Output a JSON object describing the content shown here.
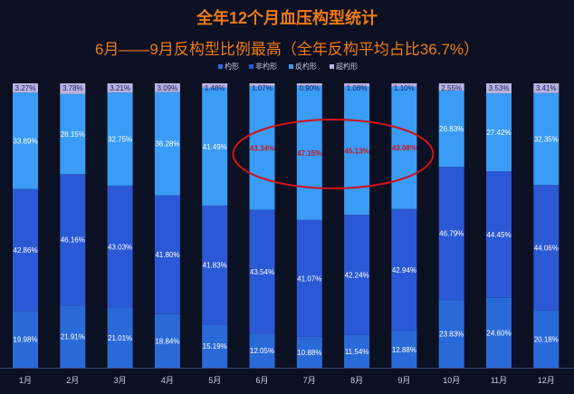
{
  "chart_data": {
    "type": "bar",
    "stacked": true,
    "normalized": true,
    "title": "全年12个月血压构型统计",
    "subtitle": "6月——9月反构型比例最高（全年反构平均占比36.7%）",
    "categories": [
      "1月",
      "2月",
      "3月",
      "4月",
      "5月",
      "6月",
      "7月",
      "8月",
      "9月",
      "10月",
      "11月",
      "12月"
    ],
    "series": [
      {
        "name": "杓形",
        "color": "#2a6ad8",
        "values": [
          19.98,
          21.91,
          21.01,
          18.84,
          15.19,
          12.05,
          10.88,
          11.54,
          12.88,
          23.83,
          24.6,
          20.18
        ],
        "labels": [
          "19.98%",
          "21.91%",
          "21.01%",
          "18.84%",
          "15.19%",
          "12.05%",
          "10.88%",
          "11.54%",
          "12.88%",
          "23.83%",
          "24.60%",
          "20.18%"
        ]
      },
      {
        "name": "非杓形",
        "color": "#2b58d4",
        "values": [
          42.86,
          46.16,
          43.03,
          41.8,
          41.83,
          43.54,
          41.07,
          42.24,
          42.94,
          46.79,
          44.45,
          44.06
        ],
        "labels": [
          "42.86%",
          "46.16%",
          "43.03%",
          "41.80%",
          "41.83%",
          "43.54%",
          "41.07%",
          "42.24%",
          "42.94%",
          "46.79%",
          "44.45%",
          "44.06%"
        ]
      },
      {
        "name": "反杓形",
        "color": "#3a9cf4",
        "values": [
          33.89,
          28.15,
          32.75,
          36.28,
          41.49,
          43.34,
          47.15,
          45.13,
          43.08,
          26.83,
          27.42,
          32.35
        ],
        "labels": [
          "33.89%",
          "28.15%",
          "32.75%",
          "36.28%",
          "41.49%",
          "43.34%",
          "47.15%",
          "45.13%",
          "43.08%",
          "26.83%",
          "27.42%",
          "32.35%"
        ]
      },
      {
        "name": "超杓形",
        "color": "#b9b2df",
        "values": [
          3.27,
          3.78,
          3.21,
          3.09,
          1.48,
          1.07,
          0.9,
          1.08,
          1.1,
          2.55,
          3.53,
          3.41
        ],
        "labels": [
          "3.27%",
          "3.78%",
          "3.21%",
          "3.09%",
          "1.48%",
          "1.07%",
          "0.90%",
          "1.08%",
          "1.10%",
          "2.55%",
          "3.53%",
          "3.41%"
        ]
      }
    ],
    "highlight": {
      "categories": [
        "6月",
        "7月",
        "8月",
        "9月"
      ],
      "series": "反杓形",
      "shape": "ellipse",
      "color": "#d0121a"
    },
    "legend": "top-center",
    "grid": false
  }
}
